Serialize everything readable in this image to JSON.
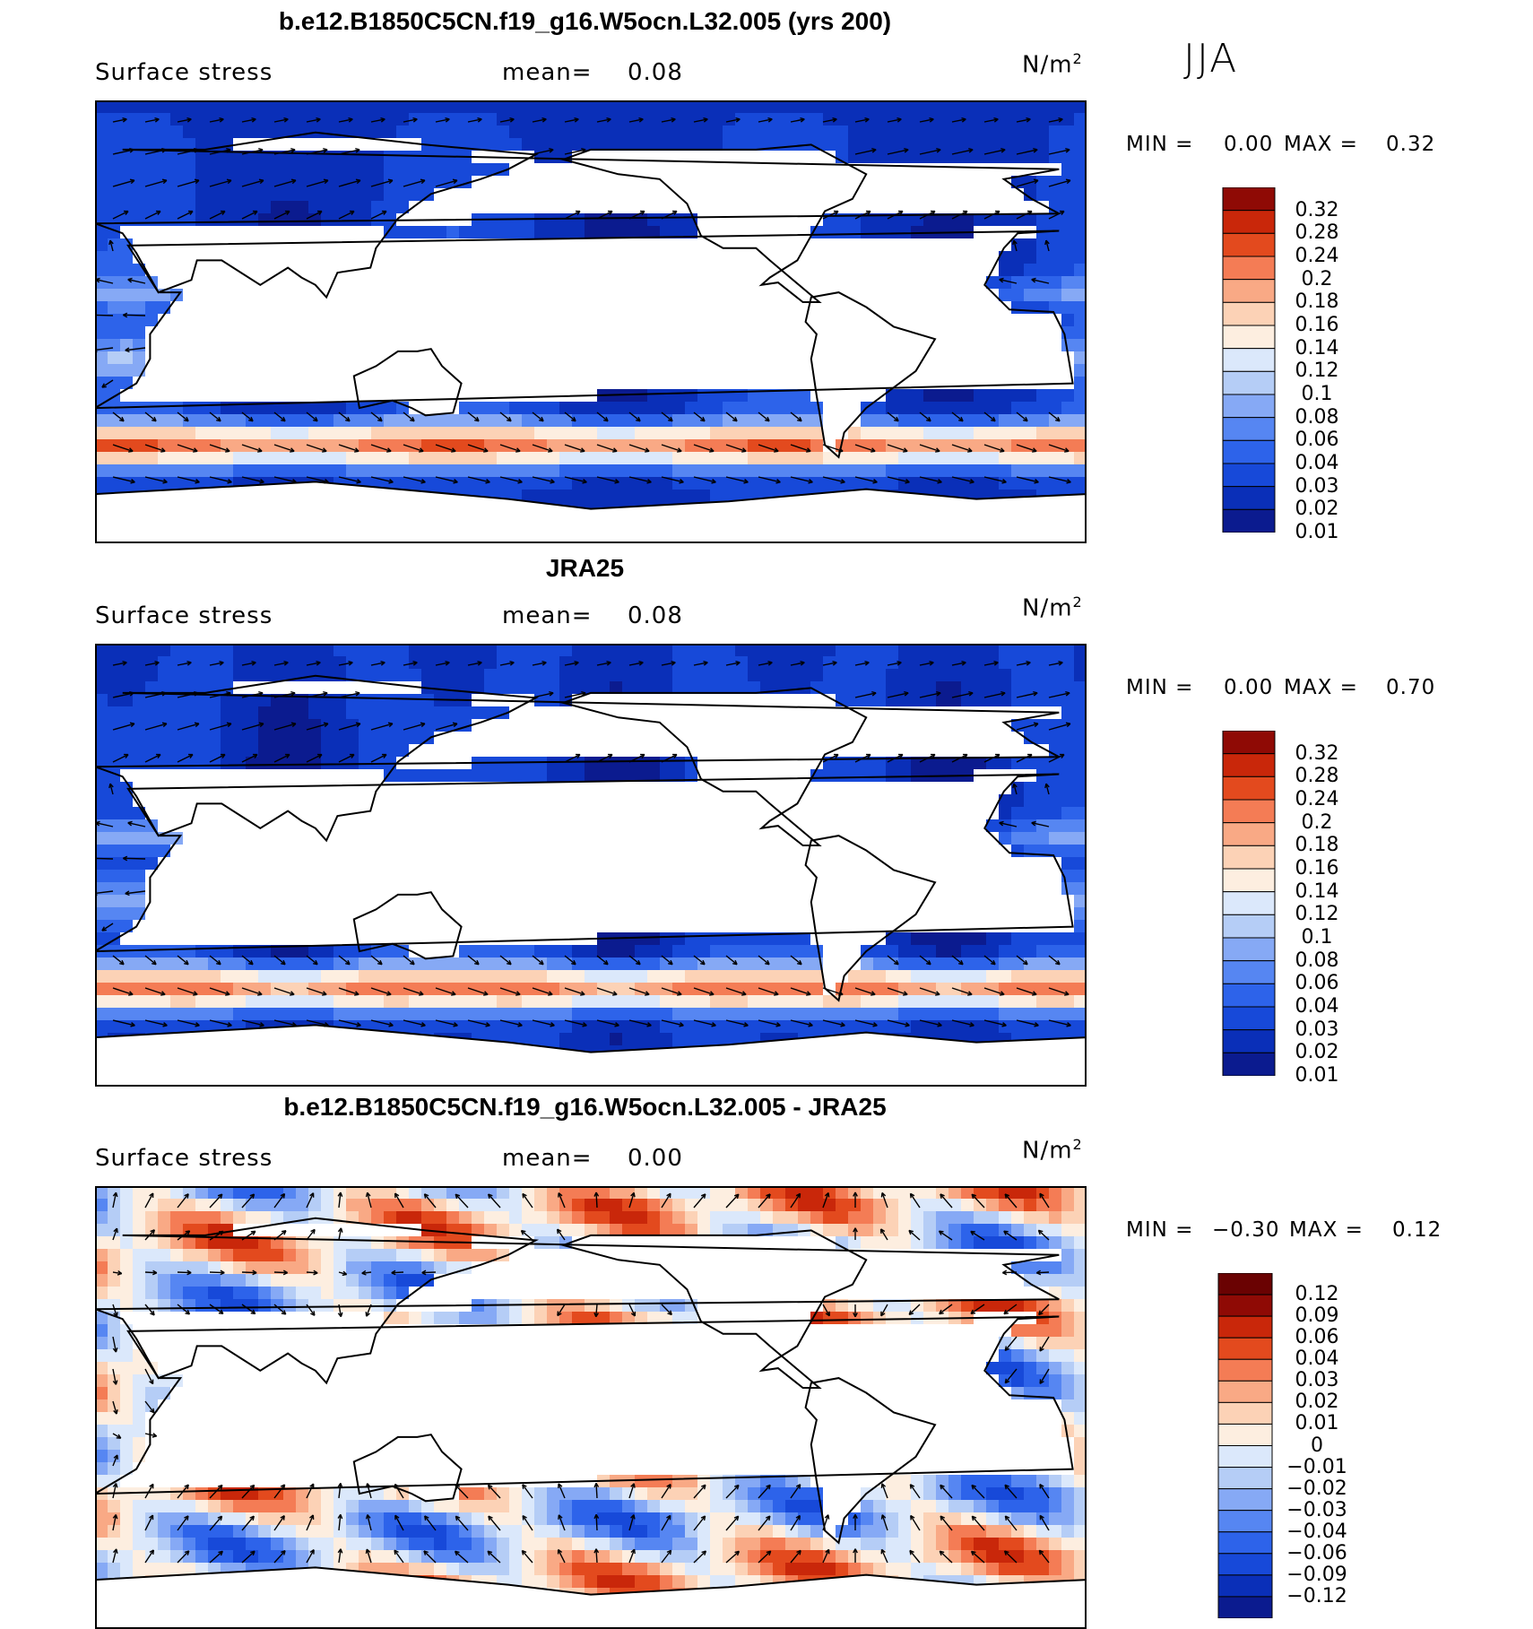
{
  "season": "JJA",
  "palette_model": [
    "#0b1b8f",
    "#0a2fb8",
    "#1749d9",
    "#2d63ea",
    "#5686f2",
    "#86a9f5",
    "#b5cdf6",
    "#dbe8fb",
    "#fdeee0",
    "#fcd2b6",
    "#f9a985",
    "#f47c55",
    "#e34a1e",
    "#c9270a",
    "#8f0a05"
  ],
  "palette_diff": [
    "#0b1b8f",
    "#0a2fb8",
    "#1749d9",
    "#2d63ea",
    "#5686f2",
    "#86a9f5",
    "#b5cdf6",
    "#dbe8fb",
    "#fdeee0",
    "#fcd2b6",
    "#f9a985",
    "#f47c55",
    "#e34a1e",
    "#c9270a",
    "#8f0a05",
    "#6a0202"
  ],
  "chart_data": [
    {
      "type": "heatmap",
      "title": "b.e12.B1850C5CN.f19_g16.W5ocn.L32.005 (yrs 200)",
      "variable": "Surface stress",
      "mean_label": "mean=",
      "mean": "0.08",
      "units_label": "N/m",
      "units_exp": "2",
      "min_label": "MIN =",
      "min": "0.00",
      "max_label": "MAX =",
      "max": "0.32",
      "colorbar_levels": [
        "0.32",
        "0.28",
        "0.24",
        "0.2",
        "0.18",
        "0.16",
        "0.14",
        "0.12",
        "0.1",
        "0.08",
        "0.06",
        "0.04",
        "0.03",
        "0.02",
        "0.01"
      ]
    },
    {
      "type": "heatmap",
      "title": "JRA25",
      "variable": "Surface stress",
      "mean_label": "mean=",
      "mean": "0.08",
      "units_label": "N/m",
      "units_exp": "2",
      "min_label": "MIN =",
      "min": "0.00",
      "max_label": "MAX =",
      "max": "0.70",
      "colorbar_levels": [
        "0.32",
        "0.28",
        "0.24",
        "0.2",
        "0.18",
        "0.16",
        "0.14",
        "0.12",
        "0.1",
        "0.08",
        "0.06",
        "0.04",
        "0.03",
        "0.02",
        "0.01"
      ]
    },
    {
      "type": "heatmap",
      "title": "b.e12.B1850C5CN.f19_g16.W5ocn.L32.005 - JRA25",
      "variable": "Surface stress",
      "mean_label": "mean=",
      "mean": "0.00",
      "units_label": "N/m",
      "units_exp": "2",
      "min_label": "MIN =",
      "min": "−0.30",
      "max_label": "MAX =",
      "max": "0.12",
      "colorbar_levels": [
        "0.12",
        "0.09",
        "0.06",
        "0.04",
        "0.03",
        "0.02",
        "0.01",
        "0",
        "−0.01",
        "−0.02",
        "−0.03",
        "−0.04",
        "−0.06",
        "−0.09",
        "−0.12"
      ]
    }
  ]
}
